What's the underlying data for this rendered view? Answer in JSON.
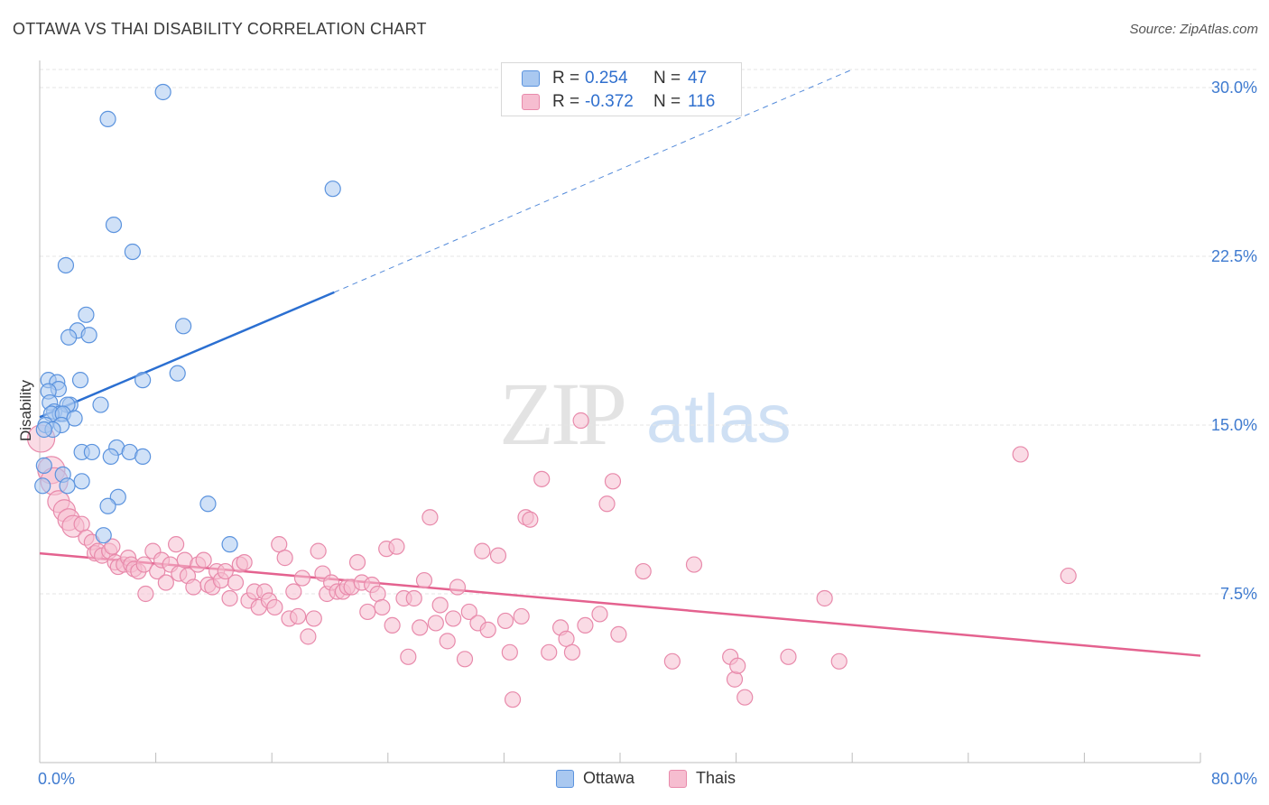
{
  "header": {
    "title": "OTTAWA VS THAI DISABILITY CORRELATION CHART",
    "source": "Source: ZipAtlas.com"
  },
  "watermark": {
    "zip": "ZIP",
    "atlas": "atlas"
  },
  "legend_box": {
    "rows": [
      {
        "r_label": "R =",
        "r_value": "0.254",
        "n_label": "N =",
        "n_value": "47"
      },
      {
        "r_label": "R =",
        "r_value": "-0.372",
        "n_label": "N =",
        "n_value": "116"
      }
    ]
  },
  "colors": {
    "ottawa_fill": "#a9c8f0",
    "ottawa_stroke": "#5b93de",
    "ottawa_line": "#2b6fd1",
    "thais_fill": "#f6bdd0",
    "thais_stroke": "#e88aab",
    "thais_line": "#e4628f",
    "value_text": "#2f6fce",
    "grid": "#e6e6e6"
  },
  "chart_data": {
    "type": "scatter",
    "title": "OTTAWA VS THAI DISABILITY CORRELATION CHART",
    "xlabel": "",
    "ylabel": "Disability",
    "xlim": [
      0,
      80
    ],
    "ylim": [
      0,
      30
    ],
    "x_tick_labels": [
      "0.0%",
      "80.0%"
    ],
    "y_ticks": [
      7.5,
      15.0,
      22.5,
      30.0
    ],
    "y_tick_labels": [
      "7.5%",
      "15.0%",
      "22.5%",
      "30.0%"
    ],
    "grid": true,
    "legend_position": "bottom",
    "series": [
      {
        "name": "Ottawa",
        "r": 0.254,
        "n": 47,
        "trend": {
          "x0": 0,
          "y0": 15.35,
          "x1": 20.3,
          "y1": 20.9,
          "dashed_to_x": 56,
          "dashed_to_y": 30.8
        },
        "points": [
          [
            8.5,
            29.8
          ],
          [
            4.7,
            28.6
          ],
          [
            20.2,
            25.5
          ],
          [
            5.1,
            23.9
          ],
          [
            6.4,
            22.7
          ],
          [
            1.8,
            22.1
          ],
          [
            3.2,
            19.9
          ],
          [
            9.9,
            19.4
          ],
          [
            2.6,
            19.2
          ],
          [
            3.4,
            19.0
          ],
          [
            2.0,
            18.9
          ],
          [
            9.5,
            17.3
          ],
          [
            0.6,
            17.0
          ],
          [
            7.1,
            17.0
          ],
          [
            2.8,
            17.0
          ],
          [
            1.2,
            16.9
          ],
          [
            1.3,
            16.6
          ],
          [
            0.6,
            16.5
          ],
          [
            0.7,
            16.0
          ],
          [
            2.1,
            15.9
          ],
          [
            4.2,
            15.9
          ],
          [
            1.9,
            15.9
          ],
          [
            1.0,
            15.6
          ],
          [
            1.4,
            15.5
          ],
          [
            0.8,
            15.5
          ],
          [
            1.6,
            15.5
          ],
          [
            2.4,
            15.3
          ],
          [
            0.4,
            15.0
          ],
          [
            1.5,
            15.0
          ],
          [
            0.9,
            14.8
          ],
          [
            0.3,
            14.8
          ],
          [
            2.9,
            13.8
          ],
          [
            3.6,
            13.8
          ],
          [
            5.3,
            14.0
          ],
          [
            6.2,
            13.8
          ],
          [
            4.9,
            13.6
          ],
          [
            7.1,
            13.6
          ],
          [
            0.3,
            13.2
          ],
          [
            1.6,
            12.8
          ],
          [
            2.9,
            12.5
          ],
          [
            0.2,
            12.3
          ],
          [
            1.9,
            12.3
          ],
          [
            5.4,
            11.8
          ],
          [
            4.7,
            11.4
          ],
          [
            11.6,
            11.5
          ],
          [
            4.4,
            10.1
          ],
          [
            13.1,
            9.7
          ]
        ]
      },
      {
        "name": "Thais",
        "r": -0.372,
        "n": 116,
        "trend": {
          "x0": 0,
          "y0": 9.3,
          "x1": 80,
          "y1": 4.75
        },
        "points": [
          [
            0.1,
            14.4
          ],
          [
            0.8,
            13.0
          ],
          [
            1.0,
            12.5
          ],
          [
            1.3,
            11.6
          ],
          [
            1.7,
            11.2
          ],
          [
            2.0,
            10.8
          ],
          [
            2.3,
            10.5
          ],
          [
            2.9,
            10.6
          ],
          [
            3.2,
            10.0
          ],
          [
            3.6,
            9.8
          ],
          [
            3.8,
            9.3
          ],
          [
            4.0,
            9.4
          ],
          [
            4.3,
            9.2
          ],
          [
            4.8,
            9.4
          ],
          [
            5.0,
            9.6
          ],
          [
            5.2,
            8.9
          ],
          [
            5.4,
            8.7
          ],
          [
            5.8,
            8.8
          ],
          [
            6.1,
            9.1
          ],
          [
            6.3,
            8.8
          ],
          [
            6.5,
            8.6
          ],
          [
            6.8,
            8.5
          ],
          [
            7.2,
            8.8
          ],
          [
            7.3,
            7.5
          ],
          [
            7.8,
            9.4
          ],
          [
            8.1,
            8.5
          ],
          [
            8.4,
            9.0
          ],
          [
            8.7,
            8.0
          ],
          [
            9.0,
            8.8
          ],
          [
            9.4,
            9.7
          ],
          [
            9.6,
            8.4
          ],
          [
            10.0,
            9.0
          ],
          [
            10.2,
            8.3
          ],
          [
            10.6,
            7.8
          ],
          [
            10.9,
            8.8
          ],
          [
            11.3,
            9.0
          ],
          [
            11.6,
            7.9
          ],
          [
            11.9,
            7.8
          ],
          [
            12.2,
            8.5
          ],
          [
            12.5,
            8.1
          ],
          [
            12.8,
            8.5
          ],
          [
            13.1,
            7.3
          ],
          [
            13.5,
            8.0
          ],
          [
            13.8,
            8.8
          ],
          [
            14.1,
            8.9
          ],
          [
            14.4,
            7.2
          ],
          [
            14.8,
            7.6
          ],
          [
            15.1,
            6.9
          ],
          [
            15.5,
            7.6
          ],
          [
            15.8,
            7.2
          ],
          [
            16.2,
            6.9
          ],
          [
            16.5,
            9.7
          ],
          [
            16.9,
            9.1
          ],
          [
            17.2,
            6.4
          ],
          [
            17.5,
            7.6
          ],
          [
            17.8,
            6.5
          ],
          [
            18.1,
            8.2
          ],
          [
            18.5,
            5.6
          ],
          [
            18.9,
            6.4
          ],
          [
            19.2,
            9.4
          ],
          [
            19.5,
            8.4
          ],
          [
            19.8,
            7.5
          ],
          [
            20.1,
            8.0
          ],
          [
            20.5,
            7.6
          ],
          [
            20.9,
            7.6
          ],
          [
            21.2,
            7.8
          ],
          [
            21.5,
            7.8
          ],
          [
            21.9,
            8.9
          ],
          [
            22.2,
            8.0
          ],
          [
            22.6,
            6.7
          ],
          [
            22.9,
            7.9
          ],
          [
            23.3,
            7.5
          ],
          [
            23.6,
            6.9
          ],
          [
            23.9,
            9.5
          ],
          [
            24.3,
            6.1
          ],
          [
            24.6,
            9.6
          ],
          [
            25.1,
            7.3
          ],
          [
            25.4,
            4.7
          ],
          [
            25.8,
            7.3
          ],
          [
            26.2,
            6.0
          ],
          [
            26.5,
            8.1
          ],
          [
            26.9,
            10.9
          ],
          [
            27.3,
            6.2
          ],
          [
            27.6,
            7.0
          ],
          [
            28.1,
            5.4
          ],
          [
            28.5,
            6.4
          ],
          [
            28.8,
            7.8
          ],
          [
            29.3,
            4.6
          ],
          [
            29.6,
            6.7
          ],
          [
            30.2,
            6.2
          ],
          [
            30.5,
            9.4
          ],
          [
            30.9,
            5.9
          ],
          [
            31.6,
            9.2
          ],
          [
            32.1,
            6.3
          ],
          [
            32.4,
            4.9
          ],
          [
            32.6,
            2.8
          ],
          [
            33.2,
            6.5
          ],
          [
            33.5,
            10.9
          ],
          [
            33.8,
            10.8
          ],
          [
            34.6,
            12.6
          ],
          [
            35.1,
            4.9
          ],
          [
            35.9,
            6.0
          ],
          [
            36.3,
            5.5
          ],
          [
            36.7,
            4.9
          ],
          [
            37.3,
            15.2
          ],
          [
            37.6,
            6.1
          ],
          [
            38.6,
            6.6
          ],
          [
            39.1,
            11.5
          ],
          [
            39.5,
            12.5
          ],
          [
            39.9,
            5.7
          ],
          [
            41.6,
            8.5
          ],
          [
            43.6,
            4.5
          ],
          [
            45.1,
            8.8
          ],
          [
            47.6,
            4.7
          ],
          [
            47.9,
            3.7
          ],
          [
            48.1,
            4.3
          ],
          [
            48.6,
            2.9
          ],
          [
            51.6,
            4.7
          ],
          [
            54.1,
            7.3
          ],
          [
            55.1,
            4.5
          ],
          [
            67.6,
            13.7
          ],
          [
            70.9,
            8.3
          ]
        ]
      }
    ]
  },
  "bottom_legend": {
    "items": [
      "Ottawa",
      "Thais"
    ]
  }
}
